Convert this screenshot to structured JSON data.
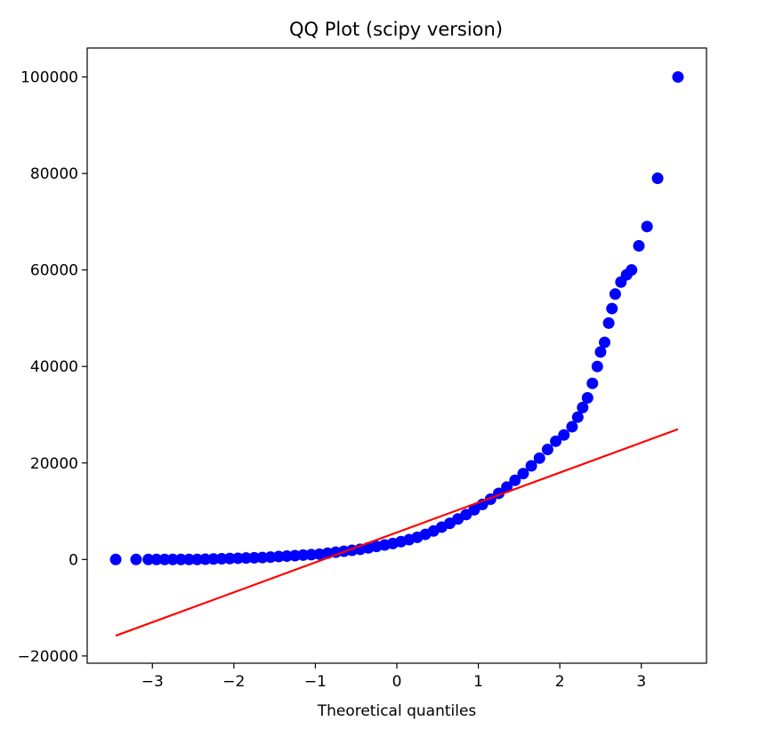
{
  "chart_data": {
    "type": "scatter",
    "title": "QQ Plot (scipy version)",
    "xlabel": "Theoretical quantiles",
    "ylabel": "",
    "xlim": [
      -3.8,
      3.8
    ],
    "ylim": [
      -21500,
      106000
    ],
    "xticks": [
      -3,
      -2,
      -1,
      0,
      1,
      2,
      3
    ],
    "xtick_labels": [
      "−3",
      "−2",
      "−1",
      "0",
      "1",
      "2",
      "3"
    ],
    "yticks": [
      -20000,
      0,
      20000,
      40000,
      60000,
      80000,
      100000
    ],
    "ytick_labels": [
      "−20000",
      "0",
      "20000",
      "40000",
      "60000",
      "80000",
      "100000"
    ],
    "grid": false,
    "series": [
      {
        "kind": "points",
        "color": "#0000ff",
        "x": [
          -3.45,
          -3.2,
          -3.05,
          -2.95,
          -2.85,
          -2.75,
          -2.65,
          -2.55,
          -2.45,
          -2.35,
          -2.25,
          -2.15,
          -2.05,
          -1.95,
          -1.85,
          -1.75,
          -1.65,
          -1.55,
          -1.45,
          -1.35,
          -1.25,
          -1.15,
          -1.05,
          -0.95,
          -0.85,
          -0.75,
          -0.65,
          -0.55,
          -0.45,
          -0.35,
          -0.25,
          -0.15,
          -0.05,
          0.05,
          0.15,
          0.25,
          0.35,
          0.45,
          0.55,
          0.65,
          0.75,
          0.85,
          0.95,
          1.05,
          1.15,
          1.25,
          1.35,
          1.45,
          1.55,
          1.65,
          1.75,
          1.85,
          1.95,
          2.05,
          2.15,
          2.22,
          2.28,
          2.34,
          2.4,
          2.46,
          2.5,
          2.55,
          2.6,
          2.64,
          2.68,
          2.75,
          2.82,
          2.88,
          2.97,
          3.07,
          3.2,
          3.45
        ],
        "y": [
          0,
          0,
          0,
          0,
          0,
          0,
          0,
          0,
          0,
          50,
          100,
          150,
          200,
          250,
          300,
          350,
          400,
          500,
          600,
          700,
          800,
          900,
          1000,
          1100,
          1300,
          1500,
          1700,
          1900,
          2100,
          2400,
          2700,
          3000,
          3300,
          3700,
          4100,
          4600,
          5200,
          5900,
          6700,
          7500,
          8400,
          9300,
          10300,
          11400,
          12500,
          13700,
          15000,
          16400,
          17800,
          19400,
          21000,
          22800,
          24500,
          25800,
          27500,
          29500,
          31500,
          33500,
          36500,
          40000,
          43000,
          45000,
          49000,
          52000,
          55000,
          57500,
          59000,
          60000,
          65000,
          69000,
          79000,
          100000
        ]
      },
      {
        "kind": "line",
        "color": "#ff0000",
        "x": [
          -3.45,
          3.45
        ],
        "y": [
          -15800,
          27000
        ]
      }
    ]
  }
}
